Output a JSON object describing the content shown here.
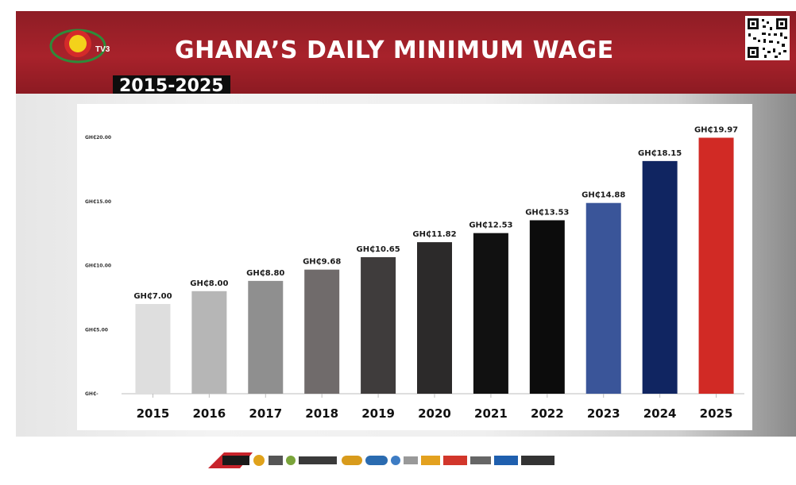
{
  "header": {
    "brand": "TV3",
    "title": "GHANA’S DAILY MINIMUM WAGE",
    "subtitle": "2015-2025",
    "qr_icon": "qr-code-icon"
  },
  "chart_data": {
    "type": "bar",
    "categories": [
      "2015",
      "2016",
      "2017",
      "2018",
      "2019",
      "2020",
      "2021",
      "2022",
      "2023",
      "2024",
      "2025"
    ],
    "values": [
      7.0,
      8.0,
      8.8,
      9.68,
      10.65,
      11.82,
      12.53,
      13.53,
      14.88,
      18.15,
      19.97
    ],
    "data_labels": [
      "GH₵7.00",
      "GH₵8.00",
      "GH₵8.80",
      "GH₵9.68",
      "GH₵10.65",
      "GH₵11.82",
      "GH₵12.53",
      "GH₵13.53",
      "GH₵14.88",
      "GH₵18.15",
      "GH₵19.97"
    ],
    "y_ticks": [
      0,
      5,
      10,
      15,
      20
    ],
    "y_tick_labels": [
      "GH₵-",
      "GH₵5.00",
      "GH₵10.00",
      "GH₵15.00",
      "GH₵20.00"
    ],
    "ylim": [
      0,
      20
    ],
    "colors": [
      "#dedede",
      "#b6b6b6",
      "#8f8f8f",
      "#706b6b",
      "#3f3c3c",
      "#2c2a2a",
      "#111111",
      "#0c0c0c",
      "#3a5599",
      "#102561",
      "#d12a25"
    ],
    "title": "GHANA’S DAILY MINIMUM WAGE",
    "xlabel": "",
    "ylabel": "",
    "grid": false,
    "legend": "none"
  },
  "footer": {
    "logos": [
      "MEDIA GENERAL",
      "3FM",
      "ONUA",
      "Connect FM",
      "3 News",
      "Akoma FM",
      "onua tv",
      "Adom",
      "APL",
      "MG DIGITAL"
    ]
  }
}
